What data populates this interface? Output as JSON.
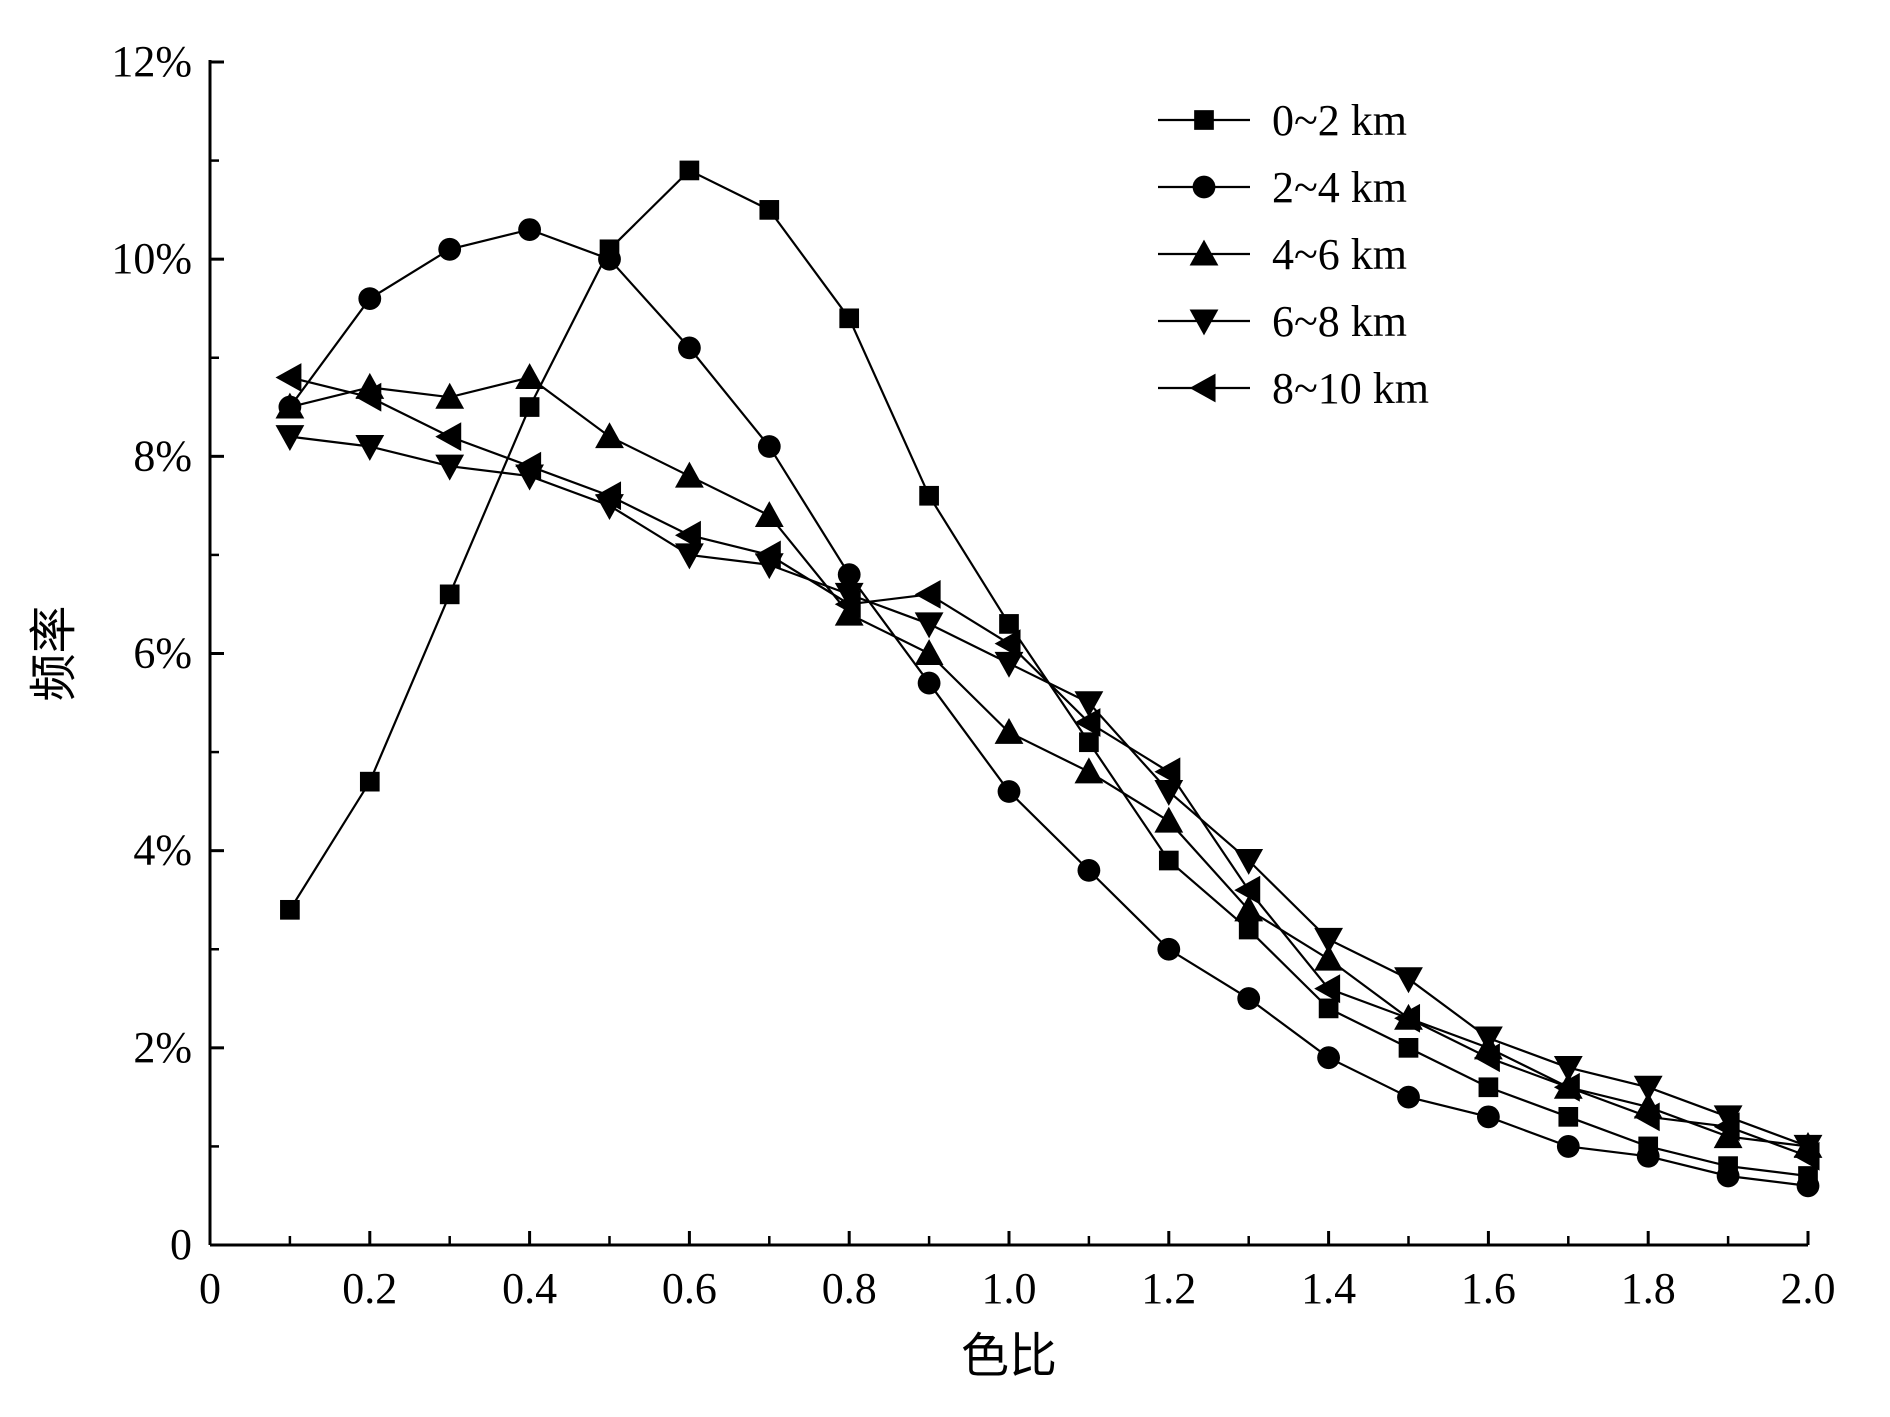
{
  "chart_data": {
    "type": "line",
    "title": "",
    "xlabel": "色比",
    "ylabel": "频率",
    "xlim": [
      0,
      2.0
    ],
    "ylim": [
      0,
      12
    ],
    "x_ticks": [
      0,
      0.2,
      0.4,
      0.6,
      0.8,
      1.0,
      1.2,
      1.4,
      1.6,
      1.8,
      2.0
    ],
    "x_tick_labels": [
      "0",
      "0.2",
      "0.4",
      "0.6",
      "0.8",
      "1.0",
      "1.2",
      "1.4",
      "1.6",
      "1.8",
      "2.0"
    ],
    "y_ticks": [
      0,
      2,
      4,
      6,
      8,
      10,
      12
    ],
    "y_tick_labels": [
      "0",
      "2%",
      "4%",
      "6%",
      "8%",
      "10%",
      "12%"
    ],
    "grid": false,
    "legend_position": "top-right",
    "x": [
      0.1,
      0.2,
      0.3,
      0.4,
      0.5,
      0.6,
      0.7,
      0.8,
      0.9,
      1.0,
      1.1,
      1.2,
      1.3,
      1.4,
      1.5,
      1.6,
      1.7,
      1.8,
      1.9,
      2.0
    ],
    "series": [
      {
        "name": "0~2 km",
        "marker": "square",
        "values": [
          3.4,
          4.7,
          6.6,
          8.5,
          10.1,
          10.9,
          10.5,
          9.4,
          7.6,
          6.3,
          5.1,
          3.9,
          3.2,
          2.4,
          2.0,
          1.6,
          1.3,
          1.0,
          0.8,
          0.7
        ]
      },
      {
        "name": "2~4 km",
        "marker": "circle",
        "values": [
          8.5,
          9.6,
          10.1,
          10.3,
          10.0,
          9.1,
          8.1,
          6.8,
          5.7,
          4.6,
          3.8,
          3.0,
          2.5,
          1.9,
          1.5,
          1.3,
          1.0,
          0.9,
          0.7,
          0.6
        ]
      },
      {
        "name": "4~6 km",
        "marker": "triangle-up",
        "values": [
          8.5,
          8.7,
          8.6,
          8.8,
          8.2,
          7.8,
          7.4,
          6.4,
          6.0,
          5.2,
          4.8,
          4.3,
          3.4,
          2.9,
          2.3,
          2.0,
          1.6,
          1.4,
          1.1,
          1.0
        ]
      },
      {
        "name": "6~8 km",
        "marker": "triangle-down",
        "values": [
          8.2,
          8.1,
          7.9,
          7.8,
          7.5,
          7.0,
          6.9,
          6.6,
          6.3,
          5.9,
          5.5,
          4.6,
          3.9,
          3.1,
          2.7,
          2.1,
          1.8,
          1.6,
          1.3,
          1.0
        ]
      },
      {
        "name": "8~10 km",
        "marker": "triangle-left",
        "values": [
          8.8,
          8.6,
          8.2,
          7.9,
          7.6,
          7.2,
          7.0,
          6.5,
          6.6,
          6.1,
          5.3,
          4.8,
          3.6,
          2.6,
          2.3,
          1.9,
          1.6,
          1.3,
          1.2,
          0.9
        ]
      }
    ]
  }
}
